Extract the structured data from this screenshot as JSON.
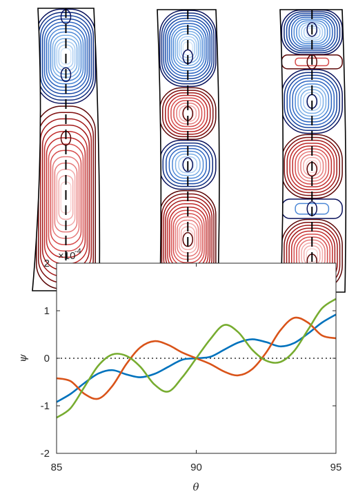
{
  "chart_data": [
    {
      "type": "contour",
      "panels": [
        {
          "name": "",
          "cells": [
            {
              "sign": "negative",
              "extent": [
                0.0,
                0.34
              ],
              "centers": [
                0.03,
                0.235
              ],
              "levels": 13
            },
            {
              "sign": "positive",
              "extent": [
                0.34,
                1.0
              ],
              "centers": [
                0.46,
                0.97
              ],
              "levels": 13
            }
          ]
        },
        {
          "name": "",
          "cells": [
            {
              "sign": "negative",
              "extent": [
                0.0,
                0.28
              ],
              "centers": [
                0.17
              ],
              "levels": 13
            },
            {
              "sign": "positive",
              "extent": [
                0.28,
                0.47
              ],
              "centers": [
                0.375
              ],
              "levels": 9
            },
            {
              "sign": "negative",
              "extent": [
                0.47,
                0.65
              ],
              "centers": [
                0.56
              ],
              "levels": 8
            },
            {
              "sign": "positive",
              "extent": [
                0.65,
                1.0
              ],
              "centers": [
                0.83
              ],
              "levels": 13
            }
          ]
        },
        {
          "name": "",
          "cells": [
            {
              "sign": "negative",
              "extent": [
                0.0,
                0.16
              ],
              "centers": [
                0.07
              ],
              "levels": 11
            },
            {
              "sign": "positive",
              "extent": [
                0.16,
                0.21
              ],
              "centers": [
                0.185
              ],
              "levels": 2
            },
            {
              "sign": "negative",
              "extent": [
                0.21,
                0.44
              ],
              "centers": [
                0.325
              ],
              "levels": 10
            },
            {
              "sign": "positive",
              "extent": [
                0.44,
                0.67
              ],
              "centers": [
                0.565
              ],
              "levels": 10
            },
            {
              "sign": "negative",
              "extent": [
                0.67,
                0.74
              ],
              "centers": [
                0.705
              ],
              "levels": 2
            },
            {
              "sign": "positive",
              "extent": [
                0.74,
                1.0
              ],
              "centers": [
                0.89
              ],
              "levels": 11
            }
          ]
        }
      ]
    },
    {
      "type": "line",
      "xlabel": "θ",
      "ylabel": "ψ",
      "y_multiplier": {
        "base": "×10",
        "exponent": "-4"
      },
      "xlim": [
        85,
        95
      ],
      "ylim": [
        -2,
        2
      ],
      "xticks": [
        85,
        90,
        95
      ],
      "yticks": [
        -2,
        -1,
        0,
        1,
        2
      ],
      "zero_line": "dotted",
      "grid": false,
      "legend": "none",
      "series": [
        {
          "color": "#0072BD",
          "x": [
            85,
            85.5,
            86,
            86.5,
            87,
            87.5,
            88,
            88.5,
            89,
            89.5,
            90,
            90.5,
            91,
            91.5,
            92,
            92.5,
            93,
            93.5,
            94,
            94.5,
            95
          ],
          "y": [
            -0.92,
            -0.75,
            -0.52,
            -0.32,
            -0.25,
            -0.34,
            -0.4,
            -0.33,
            -0.18,
            -0.03,
            0.0,
            0.03,
            0.18,
            0.33,
            0.4,
            0.34,
            0.25,
            0.32,
            0.52,
            0.75,
            0.92
          ]
        },
        {
          "color": "#D95319",
          "x": [
            85,
            85.5,
            86,
            86.5,
            87,
            87.5,
            88,
            88.5,
            89,
            89.5,
            90,
            90.5,
            91,
            91.5,
            92,
            92.5,
            93,
            93.5,
            94,
            94.5,
            95
          ],
          "y": [
            -0.42,
            -0.48,
            -0.75,
            -0.85,
            -0.58,
            -0.12,
            0.23,
            0.36,
            0.28,
            0.12,
            0.0,
            -0.12,
            -0.28,
            -0.36,
            -0.23,
            0.12,
            0.58,
            0.85,
            0.75,
            0.48,
            0.42
          ]
        },
        {
          "color": "#77AC30",
          "x": [
            85,
            85.5,
            86,
            86.5,
            87,
            87.5,
            88,
            88.5,
            89,
            89.5,
            90,
            90.5,
            91,
            91.5,
            92,
            92.5,
            93,
            93.5,
            94,
            94.5,
            95
          ],
          "y": [
            -1.25,
            -1.05,
            -0.6,
            -0.15,
            0.08,
            0.05,
            -0.18,
            -0.55,
            -0.7,
            -0.4,
            0.0,
            0.4,
            0.7,
            0.55,
            0.18,
            -0.05,
            -0.08,
            0.15,
            0.6,
            1.05,
            1.25
          ]
        }
      ]
    }
  ]
}
